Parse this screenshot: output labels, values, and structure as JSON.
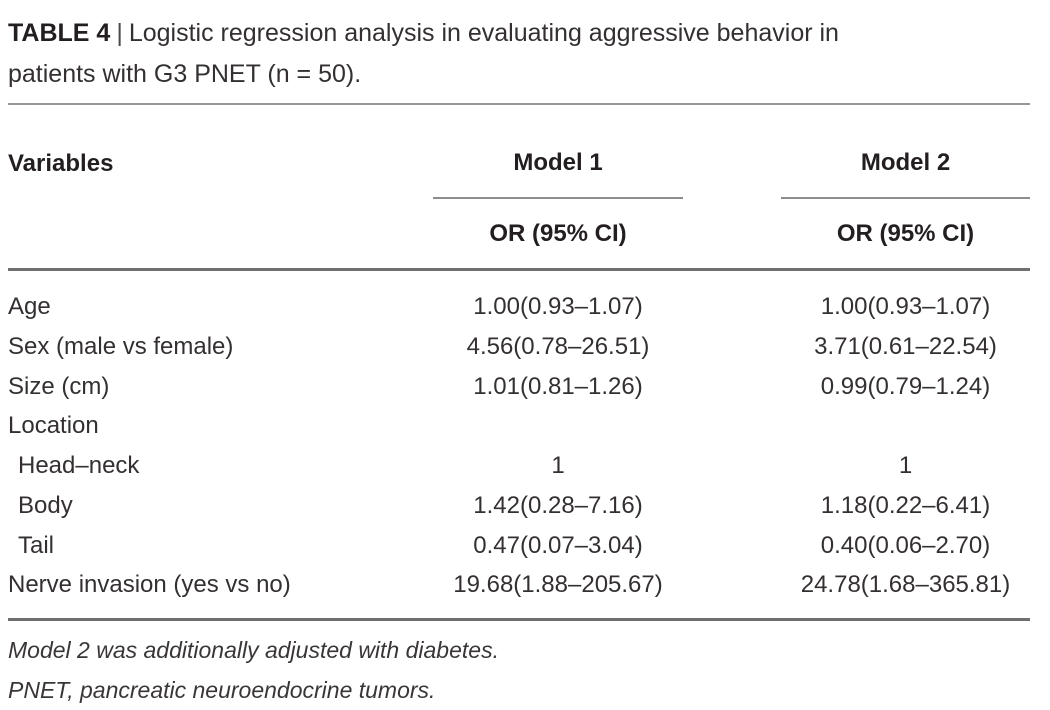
{
  "caption": {
    "label": "TABLE 4",
    "separator": "|",
    "line1": "Logistic regression analysis in evaluating aggressive behavior in",
    "line2": "patients with G3 PNET (n = 50)."
  },
  "header": {
    "variables": "Variables",
    "model1": "Model 1",
    "model2": "Model 2",
    "or_ci_1": "OR (95% CI)",
    "or_ci_2": "OR (95% CI)"
  },
  "rows": [
    {
      "label": "Age",
      "model1": "1.00(0.93–1.07)",
      "model2": "1.00(0.93–1.07)"
    },
    {
      "label": "Sex (male vs female)",
      "model1": "4.56(0.78–26.51)",
      "model2": "3.71(0.61–22.54)"
    },
    {
      "label": "Size (cm)",
      "model1": "1.01(0.81–1.26)",
      "model2": "0.99(0.79–1.24)"
    },
    {
      "label": "Location",
      "model1": "",
      "model2": ""
    },
    {
      "label": "Head–neck",
      "model1": "1",
      "model2": "1"
    },
    {
      "label": "Body",
      "model1": "1.42(0.28–7.16)",
      "model2": "1.18(0.22–6.41)"
    },
    {
      "label": "Tail",
      "model1": "0.47(0.07–3.04)",
      "model2": "0.40(0.06–2.70)"
    },
    {
      "label": "Nerve invasion (yes vs no)",
      "model1": "19.68(1.88–205.67)",
      "model2": "24.78(1.68–365.81)"
    }
  ],
  "footnotes": {
    "note1": "Model 2 was additionally adjusted with diabetes.",
    "note2": "PNET, pancreatic neuroendocrine tumors."
  },
  "colors": {
    "text": "#343031",
    "heading_text": "#231f20",
    "rule_light": "#979797",
    "rule_medium": "#8d8d8d",
    "rule_dark": "#6f6f6f",
    "background": "#ffffff"
  }
}
